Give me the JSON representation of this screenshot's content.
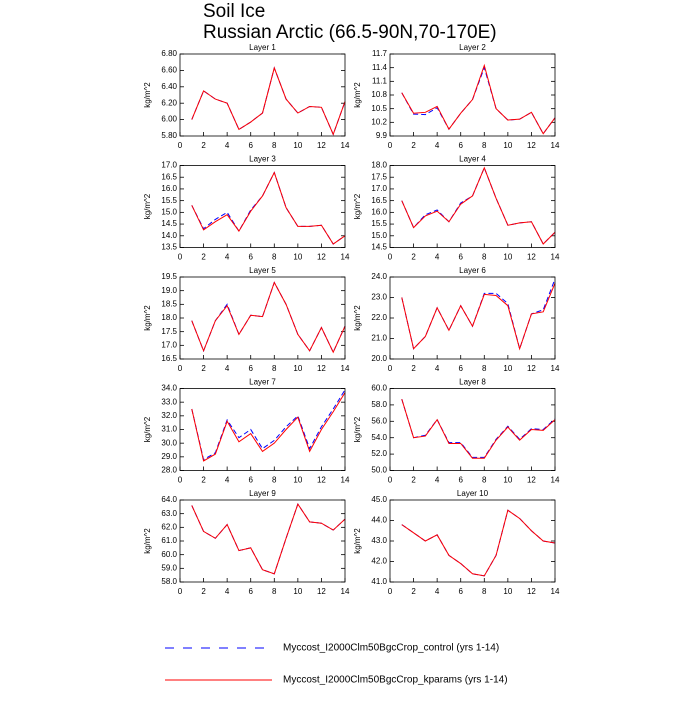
{
  "header": {
    "title": "Soil Ice",
    "subtitle": "Russian Arctic (66.5-90N,70-170E)"
  },
  "chart_data": [
    {
      "type": "line",
      "title": "Layer 1",
      "y_label": "kg/m^2",
      "x": [
        1,
        2,
        3,
        4,
        5,
        6,
        7,
        8,
        9,
        10,
        11,
        12,
        13,
        14
      ],
      "xlim": [
        0,
        14
      ],
      "xticks": [
        0,
        2,
        4,
        6,
        8,
        10,
        12,
        14
      ],
      "ylim": [
        5.8,
        6.8
      ],
      "yticks": [
        {
          "value": 5.8,
          "label": "5.80"
        },
        {
          "value": 6.0,
          "label": "6.00"
        },
        {
          "value": 6.2,
          "label": "6.20"
        },
        {
          "value": 6.4,
          "label": "6.40"
        },
        {
          "value": 6.6,
          "label": "6.60"
        },
        {
          "value": 6.8,
          "label": "6.80"
        }
      ],
      "series": [
        {
          "name": "Myccost_I2000Clm50BgcCrop_control (yrs 1-14)",
          "color": "#0000ff",
          "dash": "dashed",
          "values": [
            6.0,
            6.35,
            6.25,
            6.2,
            5.88,
            5.97,
            6.08,
            6.63,
            6.25,
            6.08,
            6.16,
            6.15,
            5.82,
            6.22
          ]
        },
        {
          "name": "Myccost_I2000Clm50BgcCrop_kparams (yrs 1-14)",
          "color": "#ff0000",
          "dash": "solid",
          "values": [
            6.0,
            6.35,
            6.25,
            6.2,
            5.88,
            5.97,
            6.08,
            6.63,
            6.25,
            6.08,
            6.16,
            6.15,
            5.82,
            6.22
          ]
        }
      ]
    },
    {
      "type": "line",
      "title": "Layer 2",
      "y_label": "kg/m^2",
      "x": [
        1,
        2,
        3,
        4,
        5,
        6,
        7,
        8,
        9,
        10,
        11,
        12,
        13,
        14
      ],
      "xlim": [
        0,
        14
      ],
      "xticks": [
        0,
        2,
        4,
        6,
        8,
        10,
        12,
        14
      ],
      "ylim": [
        9.9,
        11.7
      ],
      "yticks": [
        9.9,
        10.2,
        10.5,
        10.8,
        11.1,
        11.4,
        11.7
      ],
      "series": [
        {
          "name": "Myccost_I2000Clm50BgcCrop_control (yrs 1-14)",
          "color": "#0000ff",
          "dash": "dashed",
          "values": [
            10.85,
            10.38,
            10.37,
            10.52,
            10.05,
            10.4,
            10.7,
            11.4,
            10.5,
            10.25,
            10.27,
            10.42,
            9.95,
            10.3
          ]
        },
        {
          "name": "Myccost_I2000Clm50BgcCrop_kparams (yrs 1-14)",
          "color": "#ff0000",
          "dash": "solid",
          "values": [
            10.85,
            10.4,
            10.42,
            10.55,
            10.05,
            10.4,
            10.7,
            11.45,
            10.5,
            10.25,
            10.27,
            10.42,
            9.95,
            10.3
          ]
        }
      ]
    },
    {
      "type": "line",
      "title": "Layer 3",
      "y_label": "kg/m^2",
      "x": [
        1,
        2,
        3,
        4,
        5,
        6,
        7,
        8,
        9,
        10,
        11,
        12,
        13,
        14
      ],
      "xlim": [
        0,
        14
      ],
      "xticks": [
        0,
        2,
        4,
        6,
        8,
        10,
        12,
        14
      ],
      "ylim": [
        13.5,
        17.0
      ],
      "yticks": [
        13.5,
        {
          "value": 14,
          "label": "14.0"
        },
        14.5,
        {
          "value": 15,
          "label": "15.0"
        },
        15.5,
        {
          "value": 16,
          "label": "16.0"
        },
        16.5,
        {
          "value": 17,
          "label": "17.0"
        }
      ],
      "series": [
        {
          "name": "Myccost_I2000Clm50BgcCrop_control (yrs 1-14)",
          "color": "#0000ff",
          "dash": "dashed",
          "values": [
            15.3,
            14.3,
            14.7,
            15.0,
            14.2,
            15.1,
            15.7,
            16.7,
            15.2,
            14.4,
            14.4,
            14.45,
            13.65,
            14.0
          ]
        },
        {
          "name": "Myccost_I2000Clm50BgcCrop_kparams (yrs 1-14)",
          "color": "#ff0000",
          "dash": "solid",
          "values": [
            15.3,
            14.25,
            14.6,
            14.9,
            14.2,
            15.05,
            15.7,
            16.7,
            15.2,
            14.4,
            14.4,
            14.45,
            13.65,
            14.0
          ]
        }
      ]
    },
    {
      "type": "line",
      "title": "Layer 4",
      "y_label": "kg/m^2",
      "x": [
        1,
        2,
        3,
        4,
        5,
        6,
        7,
        8,
        9,
        10,
        11,
        12,
        13,
        14
      ],
      "xlim": [
        0,
        14
      ],
      "xticks": [
        0,
        2,
        4,
        6,
        8,
        10,
        12,
        14
      ],
      "ylim": [
        14.5,
        18.0
      ],
      "yticks": [
        14.5,
        {
          "value": 15,
          "label": "15.0"
        },
        15.5,
        {
          "value": 16,
          "label": "16.0"
        },
        16.5,
        {
          "value": 17,
          "label": "17.0"
        },
        17.5,
        {
          "value": 18,
          "label": "18.0"
        }
      ],
      "series": [
        {
          "name": "Myccost_I2000Clm50BgcCrop_control (yrs 1-14)",
          "color": "#0000ff",
          "dash": "dashed",
          "values": [
            16.5,
            15.35,
            15.9,
            16.1,
            15.6,
            16.4,
            16.7,
            17.9,
            16.6,
            15.45,
            15.55,
            15.6,
            14.65,
            15.15
          ]
        },
        {
          "name": "Myccost_I2000Clm50BgcCrop_kparams (yrs 1-14)",
          "color": "#ff0000",
          "dash": "solid",
          "values": [
            16.5,
            15.35,
            15.85,
            16.05,
            15.6,
            16.35,
            16.7,
            17.9,
            16.6,
            15.45,
            15.55,
            15.6,
            14.65,
            15.15
          ]
        }
      ]
    },
    {
      "type": "line",
      "title": "Layer 5",
      "y_label": "kg/m^2",
      "x": [
        1,
        2,
        3,
        4,
        5,
        6,
        7,
        8,
        9,
        10,
        11,
        12,
        13,
        14
      ],
      "xlim": [
        0,
        14
      ],
      "xticks": [
        0,
        2,
        4,
        6,
        8,
        10,
        12,
        14
      ],
      "ylim": [
        16.5,
        19.5
      ],
      "yticks": [
        16.5,
        {
          "value": 17,
          "label": "17.0"
        },
        17.5,
        {
          "value": 18,
          "label": "18.0"
        },
        18.5,
        {
          "value": 19,
          "label": "19.0"
        },
        19.5
      ],
      "series": [
        {
          "name": "Myccost_I2000Clm50BgcCrop_control (yrs 1-14)",
          "color": "#0000ff",
          "dash": "dashed",
          "values": [
            17.9,
            16.8,
            17.9,
            18.5,
            17.4,
            18.1,
            18.05,
            19.3,
            18.5,
            17.4,
            16.8,
            17.65,
            16.75,
            17.7
          ]
        },
        {
          "name": "Myccost_I2000Clm50BgcCrop_kparams (yrs 1-14)",
          "color": "#ff0000",
          "dash": "solid",
          "values": [
            17.9,
            16.8,
            17.9,
            18.45,
            17.4,
            18.1,
            18.05,
            19.3,
            18.5,
            17.4,
            16.8,
            17.65,
            16.75,
            17.7
          ]
        }
      ]
    },
    {
      "type": "line",
      "title": "Layer 6",
      "y_label": "kg/m^2",
      "x": [
        1,
        2,
        3,
        4,
        5,
        6,
        7,
        8,
        9,
        10,
        11,
        12,
        13,
        14
      ],
      "xlim": [
        0,
        14
      ],
      "xticks": [
        0,
        2,
        4,
        6,
        8,
        10,
        12,
        14
      ],
      "ylim": [
        20,
        24
      ],
      "yticks": [
        {
          "value": 20,
          "label": "20.0"
        },
        {
          "value": 21,
          "label": "21.0"
        },
        {
          "value": 22,
          "label": "22.0"
        },
        {
          "value": 23,
          "label": "23.0"
        },
        {
          "value": 24,
          "label": "24.0"
        }
      ],
      "series": [
        {
          "name": "Myccost_I2000Clm50BgcCrop_control (yrs 1-14)",
          "color": "#0000ff",
          "dash": "dashed",
          "values": [
            23.0,
            20.5,
            21.1,
            22.5,
            21.4,
            22.6,
            21.6,
            23.2,
            23.2,
            22.7,
            20.5,
            22.2,
            22.4,
            23.9
          ]
        },
        {
          "name": "Myccost_I2000Clm50BgcCrop_kparams (yrs 1-14)",
          "color": "#ff0000",
          "dash": "solid",
          "values": [
            23.0,
            20.5,
            21.1,
            22.5,
            21.4,
            22.6,
            21.6,
            23.15,
            23.1,
            22.6,
            20.5,
            22.2,
            22.3,
            23.7
          ]
        }
      ]
    },
    {
      "type": "line",
      "title": "Layer 7",
      "y_label": "kg/m^2",
      "x": [
        1,
        2,
        3,
        4,
        5,
        6,
        7,
        8,
        9,
        10,
        11,
        12,
        13,
        14
      ],
      "xlim": [
        0,
        14
      ],
      "xticks": [
        0,
        2,
        4,
        6,
        8,
        10,
        12,
        14
      ],
      "ylim": [
        28,
        34
      ],
      "yticks": [
        {
          "value": 28,
          "label": "28.0"
        },
        {
          "value": 29,
          "label": "29.0"
        },
        {
          "value": 30,
          "label": "30.0"
        },
        {
          "value": 31,
          "label": "31.0"
        },
        {
          "value": 32,
          "label": "32.0"
        },
        {
          "value": 33,
          "label": "33.0"
        },
        {
          "value": 34,
          "label": "34.0"
        }
      ],
      "series": [
        {
          "name": "Myccost_I2000Clm50BgcCrop_control (yrs 1-14)",
          "color": "#0000ff",
          "dash": "dashed",
          "values": [
            32.5,
            28.8,
            29.3,
            31.7,
            30.4,
            31.0,
            29.6,
            30.2,
            31.2,
            32.0,
            29.6,
            31.2,
            32.5,
            33.9
          ]
        },
        {
          "name": "Myccost_I2000Clm50BgcCrop_kparams (yrs 1-14)",
          "color": "#ff0000",
          "dash": "solid",
          "values": [
            32.5,
            28.7,
            29.2,
            31.6,
            30.1,
            30.7,
            29.4,
            30.0,
            31.0,
            31.9,
            29.4,
            31.0,
            32.3,
            33.7
          ]
        }
      ]
    },
    {
      "type": "line",
      "title": "Layer 8",
      "y_label": "kg/m^2",
      "x": [
        1,
        2,
        3,
        4,
        5,
        6,
        7,
        8,
        9,
        10,
        11,
        12,
        13,
        14
      ],
      "xlim": [
        0,
        14
      ],
      "xticks": [
        0,
        2,
        4,
        6,
        8,
        10,
        12,
        14
      ],
      "ylim": [
        50,
        60
      ],
      "yticks": [
        {
          "value": 50,
          "label": "50.0"
        },
        {
          "value": 52,
          "label": "52.0"
        },
        {
          "value": 54,
          "label": "54.0"
        },
        {
          "value": 56,
          "label": "56.0"
        },
        {
          "value": 58,
          "label": "58.0"
        },
        {
          "value": 60,
          "label": "60.0"
        }
      ],
      "series": [
        {
          "name": "Myccost_I2000Clm50BgcCrop_control (yrs 1-14)",
          "color": "#0000ff",
          "dash": "dashed",
          "values": [
            58.7,
            54.0,
            54.3,
            56.2,
            53.4,
            53.4,
            51.6,
            51.6,
            53.8,
            55.4,
            53.8,
            55.1,
            55.0,
            56.3
          ]
        },
        {
          "name": "Myccost_I2000Clm50BgcCrop_kparams (yrs 1-14)",
          "color": "#ff0000",
          "dash": "solid",
          "values": [
            58.7,
            54.0,
            54.2,
            56.2,
            53.3,
            53.3,
            51.5,
            51.5,
            53.7,
            55.3,
            53.7,
            55.0,
            54.9,
            56.2
          ]
        }
      ]
    },
    {
      "type": "line",
      "title": "Layer 9",
      "y_label": "kg/m^2",
      "x": [
        1,
        2,
        3,
        4,
        5,
        6,
        7,
        8,
        9,
        10,
        11,
        12,
        13,
        14
      ],
      "xlim": [
        0,
        14
      ],
      "xticks": [
        0,
        2,
        4,
        6,
        8,
        10,
        12,
        14
      ],
      "ylim": [
        58,
        64
      ],
      "yticks": [
        {
          "value": 58,
          "label": "58.0"
        },
        {
          "value": 59,
          "label": "59.0"
        },
        {
          "value": 60,
          "label": "60.0"
        },
        {
          "value": 61,
          "label": "61.0"
        },
        {
          "value": 62,
          "label": "62.0"
        },
        {
          "value": 63,
          "label": "63.0"
        },
        {
          "value": 64,
          "label": "64.0"
        }
      ],
      "series": [
        {
          "name": "Myccost_I2000Clm50BgcCrop_control (yrs 1-14)",
          "color": "#0000ff",
          "dash": "dashed",
          "values": [
            63.6,
            61.7,
            61.2,
            62.2,
            60.3,
            60.5,
            58.9,
            58.6,
            61.2,
            63.7,
            62.4,
            62.3,
            61.8,
            62.6
          ]
        },
        {
          "name": "Myccost_I2000Clm50BgcCrop_kparams (yrs 1-14)",
          "color": "#ff0000",
          "dash": "solid",
          "values": [
            63.6,
            61.7,
            61.2,
            62.2,
            60.3,
            60.5,
            58.9,
            58.6,
            61.2,
            63.7,
            62.4,
            62.3,
            61.8,
            62.6
          ]
        }
      ]
    },
    {
      "type": "line",
      "title": "Layer 10",
      "y_label": "kg/m^2",
      "x": [
        1,
        2,
        3,
        4,
        5,
        6,
        7,
        8,
        9,
        10,
        11,
        12,
        13,
        14
      ],
      "xlim": [
        0,
        14
      ],
      "xticks": [
        0,
        2,
        4,
        6,
        8,
        10,
        12,
        14
      ],
      "ylim": [
        41,
        45
      ],
      "yticks": [
        {
          "value": 41,
          "label": "41.0"
        },
        {
          "value": 42,
          "label": "42.0"
        },
        {
          "value": 43,
          "label": "43.0"
        },
        {
          "value": 44,
          "label": "44.0"
        },
        {
          "value": 45,
          "label": "45.0"
        }
      ],
      "series": [
        {
          "name": "Myccost_I2000Clm50BgcCrop_control (yrs 1-14)",
          "color": "#0000ff",
          "dash": "dashed",
          "values": [
            43.8,
            43.4,
            43.0,
            43.3,
            42.3,
            41.9,
            41.4,
            41.3,
            42.3,
            44.5,
            44.1,
            43.5,
            43.0,
            42.9
          ]
        },
        {
          "name": "Myccost_I2000Clm50BgcCrop_kparams (yrs 1-14)",
          "color": "#ff0000",
          "dash": "solid",
          "values": [
            43.8,
            43.4,
            43.0,
            43.3,
            42.3,
            41.9,
            41.4,
            41.3,
            42.3,
            44.5,
            44.1,
            43.5,
            43.0,
            42.9
          ]
        }
      ]
    }
  ]
}
